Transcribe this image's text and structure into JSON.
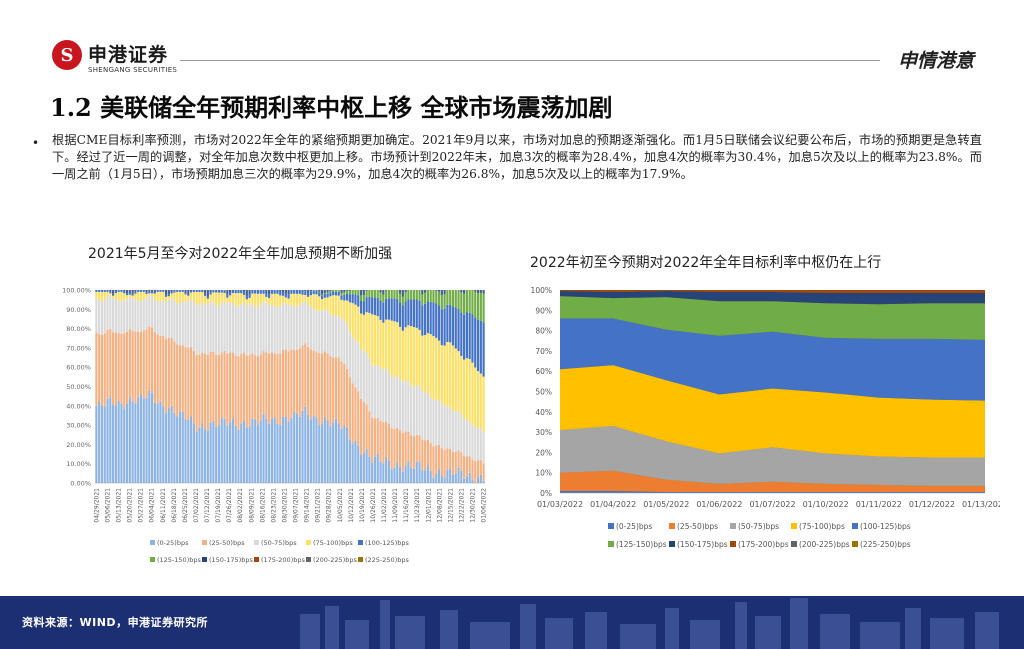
{
  "header": {
    "logo_symbol": "S",
    "logo_cn": "申港证券",
    "logo_en": "SHENGANG SECURITIES",
    "slogan": "申情港意"
  },
  "title": "1.2 美联储全年预期利率中枢上移 全球市场震荡加剧",
  "bullet_symbol": "•",
  "bullet": "根据CME目标利率预测，市场对2022年全年的紧缩预期更加确定。2021年9月以来，市场对加息的预期逐渐强化。而1月5日联储会议纪要公布后，市场的预期更是急转直下。经过了近一周的调整，对全年加息次数中枢更加上移。市场预计到2022年末，加息3次的概率为28.4%，加息4次的概率为30.4%，加息5次及以上的概率为23.8%。而一周之前（1月5日），市场预期加息三次的概率为29.9%，加息4次的概率为26.8%，加息5次及以上的概率为17.9%。",
  "footer": {
    "source": "资料来源：WIND，申港证券研究所"
  },
  "colors": {
    "footer_bg": "#1c2f72",
    "brand_red": "#c8161e"
  },
  "chart_data": [
    {
      "type": "bar",
      "stacked": true,
      "title": "2021年5月至今对2022年全年加息预期不断加强",
      "ylim": [
        0,
        100
      ],
      "yticks": [
        "0.00%",
        "10.00%",
        "20.00%",
        "30.00%",
        "40.00%",
        "50.00%",
        "60.00%",
        "70.00%",
        "80.00%",
        "90.00%",
        "100.00%"
      ],
      "x_tick_labels": [
        "04/29/2021",
        "05/06/2021",
        "05/13/2021",
        "05/20/2021",
        "05/27/2021",
        "06/04/2021",
        "06/11/2021",
        "06/18/2021",
        "06/25/2021",
        "07/02/2021",
        "07/12/2021",
        "07/19/2021",
        "07/26/2021",
        "08/02/2021",
        "08/09/2021",
        "08/16/2021",
        "08/23/2021",
        "08/30/2021",
        "09/07/2021",
        "09/14/2021",
        "09/21/2021",
        "09/28/2021",
        "10/05/2021",
        "10/12/2021",
        "10/19/2021",
        "10/26/2021",
        "11/02/2021",
        "11/09/2021",
        "11/16/2021",
        "11/23/2021",
        "12/01/2021",
        "12/08/2021",
        "12/15/2021",
        "12/22/2021",
        "12/30/2021",
        "01/06/2022"
      ],
      "legend": [
        "(0-25)bps",
        "(25-50)bps",
        "(50-75)bps",
        "(75-100)bps",
        "(100-125)bps",
        "(125-150)bps",
        "(150-175)bps",
        "(175-200)bps",
        "(200-225)bps",
        "(225-250)bps"
      ],
      "series_colors": [
        "#8eb4e3",
        "#f4b183",
        "#d9d9d9",
        "#ffe066",
        "#4472c4",
        "#70ad47",
        "#264478",
        "#9e480e",
        "#636363",
        "#997300"
      ],
      "anchors": {
        "x_index": [
          0,
          5,
          9,
          15,
          19,
          22,
          25,
          29,
          32,
          35
        ],
        "series": [
          {
            "name": "(0-25)bps",
            "values": [
              40,
              45,
              30,
              32,
              36,
              30,
              12,
              8,
              5,
              3
            ]
          },
          {
            "name": "(25-50)bps",
            "values": [
              38,
              35,
              38,
              35,
              35,
              35,
              22,
              16,
              12,
              8
            ]
          },
          {
            "name": "(50-75)bps",
            "values": [
              18,
              16,
              26,
              26,
              22,
              22,
              28,
              26,
              22,
              16
            ]
          },
          {
            "name": "(75-100)bps",
            "values": [
              3,
              3,
              5,
              5,
              5,
              10,
              25,
              30,
              33,
              30
            ]
          },
          {
            "name": "(100-125)bps",
            "values": [
              1,
              1,
              1,
              2,
              2,
              2,
              9,
              15,
              20,
              28
            ]
          },
          {
            "name": "(125-150)bps",
            "values": [
              0,
              0,
              0,
              0,
              0,
              1,
              4,
              5,
              8,
              15
            ]
          }
        ]
      }
    },
    {
      "type": "area",
      "stacked": true,
      "title": "2022年初至今预期对2022年全年目标利率中枢仍在上行",
      "ylim": [
        0,
        100
      ],
      "yticks": [
        "0%",
        "10%",
        "20%",
        "30%",
        "40%",
        "50%",
        "60%",
        "70%",
        "80%",
        "90%",
        "100%"
      ],
      "categories": [
        "01/03/2022",
        "01/04/2022",
        "01/05/2022",
        "01/06/2022",
        "01/07/2022",
        "01/10/2022",
        "01/11/2022",
        "01/12/2022",
        "01/13/2022"
      ],
      "legend": [
        "(0-25)bps",
        "(25-50)bps",
        "(50-75)bps",
        "(75-100)bps",
        "(100-125)bps",
        "(125-150)bps",
        "(150-175)bps",
        "(175-200)bps",
        "(200-225)bps",
        "(225-250)bps"
      ],
      "series_colors": [
        "#4472c4",
        "#ed7d31",
        "#a5a5a5",
        "#ffc000",
        "#4472c4",
        "#70ad47",
        "#264478",
        "#9e480e",
        "#636363",
        "#997300"
      ],
      "series": [
        {
          "name": "(0-25)bps",
          "values": [
            1,
            1,
            0.5,
            0.5,
            0.5,
            0.5,
            0.5,
            0.5,
            0.5
          ]
        },
        {
          "name": "(25-50)bps",
          "values": [
            9,
            10,
            6,
            4,
            5,
            4,
            3.5,
            3,
            3
          ]
        },
        {
          "name": "(50-75)bps",
          "values": [
            21,
            22,
            19,
            15,
            17,
            15,
            14,
            14,
            14
          ]
        },
        {
          "name": "(75-100)bps",
          "values": [
            30,
            30,
            30,
            29,
            29,
            30,
            29,
            28.5,
            28
          ]
        },
        {
          "name": "(100-125)bps",
          "values": [
            25,
            23,
            25,
            29,
            28,
            27,
            29,
            30,
            30
          ]
        },
        {
          "name": "(125-150)bps",
          "values": [
            11,
            10,
            16,
            17,
            15,
            17,
            17,
            17.5,
            18
          ]
        },
        {
          "name": "(150-175)bps",
          "values": [
            2.5,
            3,
            3,
            4.5,
            4.5,
            5,
            5.5,
            5,
            5
          ]
        },
        {
          "name": "(175-200)bps",
          "values": [
            0.5,
            1,
            0.5,
            1,
            1,
            1.5,
            1.5,
            1.5,
            1.5
          ]
        }
      ]
    }
  ]
}
